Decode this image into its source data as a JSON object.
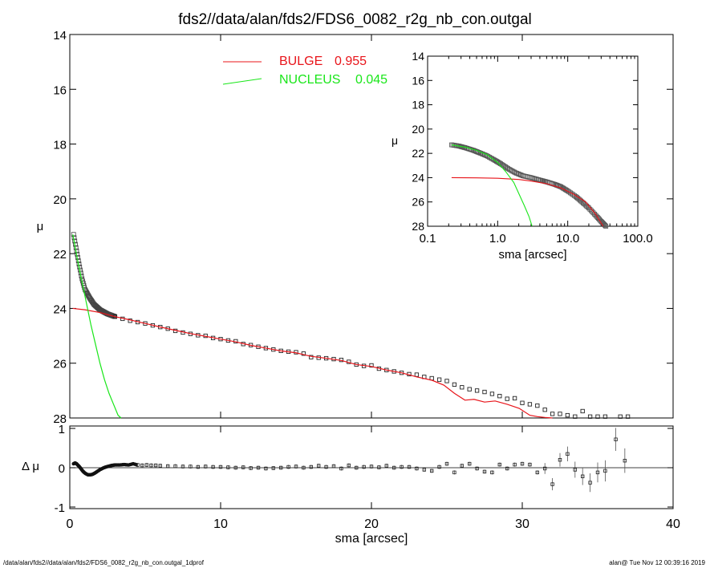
{
  "title": "fds2//data/alan/fds2/FDS6_0082_r2g_nb_con.outgal",
  "footer": {
    "left": "/data/alan/fds2//data/alan/fds2/FDS6_0082_r2g_nb_con.outgal_1dprof",
    "right": "alan@  Tue Nov 12 00:39:16 2019"
  },
  "colors": {
    "bulge": "#e8141a",
    "nucleus": "#19e619",
    "data": "#000000"
  },
  "legend": [
    {
      "label": "BULGE",
      "value": "0.955",
      "color": "#e8141a"
    },
    {
      "label": "NUCLEUS",
      "value": "0.045",
      "color": "#19e619"
    }
  ],
  "chart_data": [
    {
      "type": "scatter",
      "panel": "main profile",
      "xlabel": "",
      "ylabel": "μ",
      "xlim": [
        0,
        40
      ],
      "ylim": [
        28,
        14
      ],
      "y_inverted": true,
      "y_ticks": [
        "14",
        "16",
        "18",
        "20",
        "22",
        "24",
        "26",
        "28"
      ],
      "x_ticks": [],
      "data_points": [
        [
          0.25,
          21.3
        ],
        [
          0.4,
          21.75
        ],
        [
          0.6,
          22.35
        ],
        [
          0.8,
          22.9
        ],
        [
          1.0,
          23.3
        ],
        [
          1.3,
          23.6
        ],
        [
          1.6,
          23.85
        ],
        [
          2.0,
          24.05
        ],
        [
          2.5,
          24.2
        ],
        [
          3.0,
          24.3
        ],
        [
          3.5,
          24.38
        ],
        [
          4.0,
          24.45
        ],
        [
          4.5,
          24.5
        ],
        [
          5.0,
          24.55
        ],
        [
          5.5,
          24.62
        ],
        [
          6.0,
          24.68
        ],
        [
          6.5,
          24.74
        ],
        [
          7.0,
          24.82
        ],
        [
          7.5,
          24.88
        ],
        [
          8.0,
          24.93
        ],
        [
          8.5,
          24.98
        ],
        [
          9.0,
          25.0
        ],
        [
          9.5,
          25.08
        ],
        [
          10.0,
          25.12
        ],
        [
          10.5,
          25.17
        ],
        [
          11.0,
          25.2
        ],
        [
          11.5,
          25.3
        ],
        [
          12.0,
          25.34
        ],
        [
          12.5,
          25.4
        ],
        [
          13.0,
          25.45
        ],
        [
          13.5,
          25.5
        ],
        [
          14.0,
          25.55
        ],
        [
          14.5,
          25.58
        ],
        [
          15.0,
          25.6
        ],
        [
          15.5,
          25.65
        ],
        [
          16.0,
          25.78
        ],
        [
          16.5,
          25.8
        ],
        [
          17.0,
          25.82
        ],
        [
          17.5,
          25.85
        ],
        [
          18.0,
          25.88
        ],
        [
          18.5,
          25.95
        ],
        [
          19.0,
          26.05
        ],
        [
          19.5,
          26.1
        ],
        [
          20.0,
          26.08
        ],
        [
          20.5,
          26.2
        ],
        [
          21.0,
          26.25
        ],
        [
          21.5,
          26.3
        ],
        [
          22.0,
          26.35
        ],
        [
          22.5,
          26.4
        ],
        [
          23.0,
          26.42
        ],
        [
          23.5,
          26.5
        ],
        [
          24.0,
          26.55
        ],
        [
          24.5,
          26.6
        ],
        [
          25.0,
          26.65
        ],
        [
          25.5,
          26.78
        ],
        [
          26.0,
          26.88
        ],
        [
          26.5,
          26.95
        ],
        [
          27.0,
          27.0
        ],
        [
          27.5,
          27.05
        ],
        [
          28.0,
          27.12
        ],
        [
          28.5,
          27.2
        ],
        [
          29.0,
          27.3
        ],
        [
          29.5,
          27.28
        ],
        [
          30.0,
          27.45
        ],
        [
          30.5,
          27.5
        ],
        [
          31.0,
          27.55
        ],
        [
          31.5,
          27.7
        ],
        [
          32.0,
          27.85
        ],
        [
          32.5,
          27.85
        ],
        [
          33.0,
          27.9
        ],
        [
          33.5,
          27.95
        ],
        [
          34.0,
          27.75
        ],
        [
          34.5,
          27.95
        ],
        [
          35.0,
          27.95
        ],
        [
          35.5,
          27.95
        ],
        [
          36.5,
          27.95
        ],
        [
          37.0,
          27.95
        ]
      ],
      "bulge_model": [
        [
          0.2,
          24.0
        ],
        [
          1,
          24.05
        ],
        [
          2,
          24.15
        ],
        [
          3,
          24.3
        ],
        [
          4,
          24.42
        ],
        [
          5,
          24.55
        ],
        [
          6,
          24.68
        ],
        [
          7,
          24.8
        ],
        [
          8,
          24.92
        ],
        [
          9,
          25.02
        ],
        [
          10,
          25.12
        ],
        [
          11,
          25.22
        ],
        [
          12,
          25.35
        ],
        [
          13,
          25.45
        ],
        [
          14,
          25.55
        ],
        [
          15,
          25.62
        ],
        [
          16,
          25.75
        ],
        [
          17,
          25.82
        ],
        [
          18,
          25.9
        ],
        [
          19,
          26.05
        ],
        [
          20,
          26.12
        ],
        [
          21,
          26.25
        ],
        [
          22,
          26.35
        ],
        [
          23,
          26.5
        ],
        [
          24,
          26.62
        ],
        [
          24.8,
          26.8
        ],
        [
          25.5,
          27.1
        ],
        [
          26.2,
          27.35
        ],
        [
          26.8,
          27.32
        ],
        [
          27.5,
          27.42
        ],
        [
          28.2,
          27.38
        ],
        [
          29.0,
          27.5
        ],
        [
          29.8,
          27.65
        ],
        [
          30.5,
          27.9
        ],
        [
          31.0,
          27.95
        ],
        [
          31.5,
          27.98
        ],
        [
          32.0,
          28.0
        ]
      ],
      "nucleus_model": [
        [
          0.2,
          21.3
        ],
        [
          0.5,
          22.2
        ],
        [
          0.8,
          23.0
        ],
        [
          1.1,
          23.8
        ],
        [
          1.4,
          24.6
        ],
        [
          1.7,
          25.3
        ],
        [
          2.0,
          26.0
        ],
        [
          2.3,
          26.6
        ],
        [
          2.6,
          27.1
        ],
        [
          2.9,
          27.5
        ],
        [
          3.2,
          27.9
        ],
        [
          3.4,
          28.0
        ]
      ]
    },
    {
      "type": "scatter",
      "panel": "inset log profile",
      "xlabel": "sma [arcsec]",
      "ylabel": "μ",
      "x_scale": "log",
      "xlim": [
        0.1,
        100.0
      ],
      "ylim": [
        28,
        14
      ],
      "y_inverted": true,
      "x_ticks": [
        "0.1",
        "1.0",
        "10.0",
        "100.0"
      ],
      "y_ticks": [
        "14",
        "16",
        "18",
        "20",
        "22",
        "24",
        "26",
        "28"
      ],
      "data_points": [
        [
          0.22,
          21.3
        ],
        [
          0.28,
          21.4
        ],
        [
          0.35,
          21.55
        ],
        [
          0.45,
          21.75
        ],
        [
          0.55,
          21.95
        ],
        [
          0.7,
          22.2
        ],
        [
          0.9,
          22.55
        ],
        [
          1.1,
          22.85
        ],
        [
          1.4,
          23.25
        ],
        [
          1.8,
          23.6
        ],
        [
          2.3,
          23.85
        ],
        [
          3.0,
          24.0
        ],
        [
          4.0,
          24.2
        ],
        [
          5.0,
          24.35
        ],
        [
          6.5,
          24.55
        ],
        [
          8.0,
          24.75
        ],
        [
          10.0,
          25.1
        ],
        [
          13.0,
          25.55
        ],
        [
          16.0,
          26.0
        ],
        [
          20.0,
          26.5
        ],
        [
          25.0,
          27.1
        ],
        [
          30.0,
          27.6
        ],
        [
          35.0,
          28.0
        ]
      ],
      "bulge_model": [
        [
          0.22,
          24.0
        ],
        [
          0.5,
          24.02
        ],
        [
          1.0,
          24.05
        ],
        [
          2.0,
          24.15
        ],
        [
          3.0,
          24.28
        ],
        [
          5.0,
          24.5
        ],
        [
          8.0,
          24.85
        ],
        [
          12.0,
          25.35
        ],
        [
          18.0,
          26.0
        ],
        [
          25.0,
          27.0
        ],
        [
          32.0,
          28.0
        ]
      ],
      "nucleus_model": [
        [
          0.22,
          21.3
        ],
        [
          0.35,
          21.5
        ],
        [
          0.5,
          21.75
        ],
        [
          0.7,
          22.1
        ],
        [
          1.0,
          22.75
        ],
        [
          1.3,
          23.5
        ],
        [
          1.7,
          24.4
        ],
        [
          2.0,
          25.3
        ],
        [
          2.4,
          26.3
        ],
        [
          2.8,
          27.2
        ],
        [
          3.1,
          28.0
        ]
      ]
    },
    {
      "type": "scatter",
      "panel": "residuals",
      "xlabel": "sma [arcsec]",
      "ylabel": "Δ μ",
      "xlim": [
        0,
        40
      ],
      "ylim": [
        -1,
        1
      ],
      "x_ticks": [
        "0",
        "10",
        "20",
        "30",
        "40"
      ],
      "y_ticks": [
        "-1",
        "0",
        "1"
      ],
      "points": [
        [
          0.25,
          0.1
        ],
        [
          0.35,
          0.12
        ],
        [
          0.45,
          0.1
        ],
        [
          0.55,
          0.06
        ],
        [
          0.65,
          0.02
        ],
        [
          0.75,
          -0.03
        ],
        [
          0.85,
          -0.08
        ],
        [
          0.95,
          -0.12
        ],
        [
          1.05,
          -0.15
        ],
        [
          1.2,
          -0.18
        ],
        [
          1.35,
          -0.18
        ],
        [
          1.5,
          -0.17
        ],
        [
          1.65,
          -0.14
        ],
        [
          1.8,
          -0.1
        ],
        [
          2.0,
          -0.05
        ],
        [
          2.2,
          -0.01
        ],
        [
          2.4,
          0.02
        ],
        [
          2.6,
          0.04
        ],
        [
          2.8,
          0.06
        ],
        [
          3.0,
          0.07
        ],
        [
          3.3,
          0.07
        ],
        [
          3.6,
          0.08
        ],
        [
          3.9,
          0.07
        ],
        [
          4.2,
          0.1
        ],
        [
          4.5,
          0.07
        ],
        [
          4.8,
          0.06
        ],
        [
          5.1,
          0.07
        ],
        [
          5.4,
          0.06
        ],
        [
          5.7,
          0.06
        ],
        [
          6.0,
          0.05
        ],
        [
          6.5,
          0.04
        ],
        [
          7.0,
          0.04
        ],
        [
          7.5,
          0.03
        ],
        [
          8.0,
          0.03
        ],
        [
          8.5,
          0.02
        ],
        [
          9.0,
          0.03
        ],
        [
          9.5,
          0.02
        ],
        [
          10.0,
          0.02
        ],
        [
          10.5,
          0.01
        ],
        [
          11.0,
          0.0
        ],
        [
          11.5,
          0.01
        ],
        [
          12.0,
          -0.01
        ],
        [
          12.5,
          0.0
        ],
        [
          13.0,
          -0.02
        ],
        [
          13.5,
          -0.01
        ],
        [
          14.0,
          0.0
        ],
        [
          14.5,
          0.02
        ],
        [
          15.0,
          0.03
        ],
        [
          15.5,
          0.0
        ],
        [
          16.0,
          0.02
        ],
        [
          16.5,
          0.05
        ],
        [
          17.0,
          0.02
        ],
        [
          17.5,
          0.04
        ],
        [
          18.0,
          -0.02
        ],
        [
          18.5,
          0.06
        ],
        [
          19.0,
          0.0
        ],
        [
          19.5,
          0.02
        ],
        [
          20.0,
          0.03
        ],
        [
          20.5,
          0.01
        ],
        [
          21.0,
          0.05
        ],
        [
          21.5,
          0.0
        ],
        [
          22.0,
          0.02
        ],
        [
          22.5,
          0.02
        ],
        [
          23.0,
          -0.02
        ],
        [
          23.5,
          -0.05
        ],
        [
          24.0,
          -0.08
        ],
        [
          24.5,
          0.02
        ],
        [
          25.0,
          0.1
        ],
        [
          25.5,
          -0.12
        ],
        [
          26.0,
          0.05
        ],
        [
          26.5,
          0.1
        ],
        [
          27.0,
          -0.02
        ],
        [
          27.5,
          -0.1
        ],
        [
          28.0,
          -0.12
        ],
        [
          28.5,
          0.08
        ],
        [
          29.0,
          -0.02
        ],
        [
          29.5,
          0.08
        ],
        [
          30.0,
          0.1
        ],
        [
          30.5,
          0.08
        ],
        [
          31.0,
          -0.12
        ],
        [
          31.5,
          -0.02
        ],
        [
          32.0,
          -0.42
        ],
        [
          32.5,
          0.2
        ],
        [
          33.0,
          0.35
        ],
        [
          33.5,
          -0.05
        ],
        [
          34.0,
          -0.22
        ],
        [
          34.5,
          -0.38
        ],
        [
          35.0,
          -0.12
        ],
        [
          35.5,
          -0.08
        ],
        [
          36.2,
          0.72
        ],
        [
          36.8,
          0.18
        ]
      ]
    }
  ]
}
